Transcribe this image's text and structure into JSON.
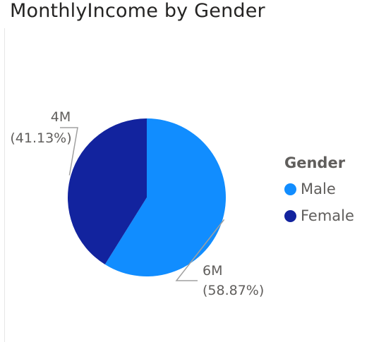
{
  "chart_data": {
    "type": "pie",
    "title": "MonthlyIncome by Gender",
    "legend": {
      "title": "Gender",
      "placement": "right"
    },
    "slices": [
      {
        "name": "Male",
        "value": 6,
        "percent": 58.87,
        "value_label": "6M",
        "percent_label": "(58.87%)",
        "color": "#118DFF"
      },
      {
        "name": "Female",
        "value": 4,
        "percent": 41.13,
        "value_label": "4M",
        "percent_label": "(41.13%)",
        "color": "#12239E"
      }
    ]
  }
}
